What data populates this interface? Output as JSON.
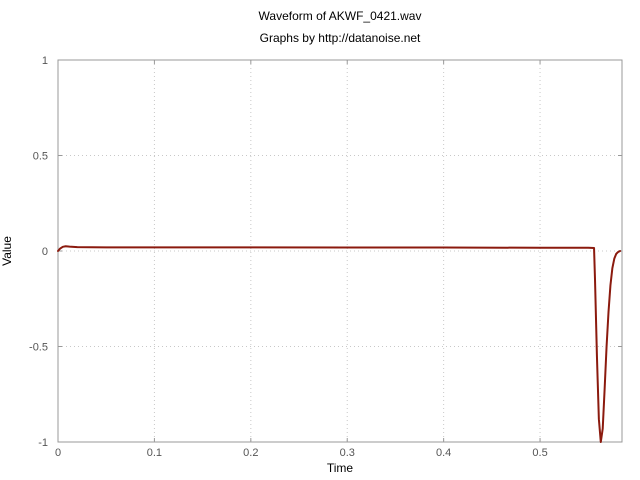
{
  "chart_data": {
    "type": "line",
    "title": "Waveform of AKWF_0421.wav",
    "subtitle": "Graphs by http://datanoise.net",
    "xlabel": "Time",
    "ylabel": "Value",
    "xlim": [
      0,
      0.585
    ],
    "ylim": [
      -1,
      1
    ],
    "xticks": [
      0,
      0.1,
      0.2,
      0.3,
      0.4,
      0.5
    ],
    "xtick_labels": [
      "0",
      "0.1",
      "0.2",
      "0.3",
      "0.4",
      "0.5"
    ],
    "yticks": [
      1,
      0.5,
      0,
      -0.5,
      -1
    ],
    "ytick_labels": [
      "1",
      "0.5",
      "0",
      "-0.5",
      "-1"
    ],
    "grid": true,
    "series": [
      {
        "color": "#8b1a0e",
        "x": [
          0,
          0.002,
          0.005,
          0.008,
          0.012,
          0.02,
          0.05,
          0.1,
          0.2,
          0.3,
          0.4,
          0.5,
          0.55,
          0.556,
          0.557,
          0.559,
          0.561,
          0.563,
          0.565,
          0.567,
          0.569,
          0.571,
          0.573,
          0.575,
          0.577,
          0.579,
          0.581,
          0.583
        ],
        "y": [
          0.0,
          0.012,
          0.022,
          0.025,
          0.023,
          0.02,
          0.019,
          0.019,
          0.019,
          0.018,
          0.018,
          0.017,
          0.017,
          0.016,
          -0.15,
          -0.55,
          -0.88,
          -1.0,
          -0.93,
          -0.72,
          -0.5,
          -0.32,
          -0.18,
          -0.09,
          -0.04,
          -0.015,
          -0.005,
          0.0
        ]
      }
    ]
  }
}
